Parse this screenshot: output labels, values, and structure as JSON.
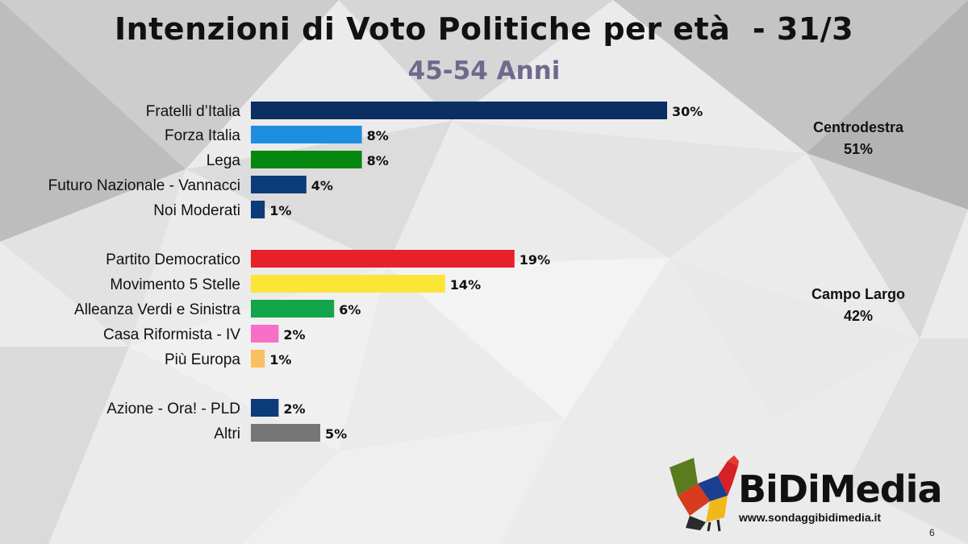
{
  "header": {
    "title": "Intenzioni di Voto Politiche per età  - 31/3",
    "subtitle": "45-54 Anni"
  },
  "chart_data": {
    "type": "bar",
    "orientation": "horizontal",
    "title": "Intenzioni di Voto Politiche per età  - 31/3",
    "subtitle": "45-54 Anni",
    "value_unit": "%",
    "categories": [
      "Fratelli d’Italia",
      "Forza Italia",
      "Lega",
      "Futuro Nazionale - Vannacci",
      "Noi Moderati",
      "Partito Democratico",
      "Movimento 5 Stelle",
      "Alleanza Verdi e Sinistra",
      "Casa Riformista - IV",
      "Più Europa",
      "Azione - Ora! - PLD",
      "Altri"
    ],
    "values": [
      30,
      8,
      8,
      4,
      1,
      19,
      14,
      6,
      2,
      1,
      2,
      5
    ],
    "value_labels": [
      "30%",
      "8%",
      "8%",
      "4%",
      "1%",
      "19%",
      "14%",
      "6%",
      "2%",
      "1%",
      "2%",
      "5%"
    ],
    "colors": [
      "#0b2f63",
      "#1e8fe0",
      "#06870f",
      "#0c3b7a",
      "#0c3b7a",
      "#e8202a",
      "#fbe536",
      "#13a54a",
      "#f76fc7",
      "#f9c05f",
      "#0c3b7a",
      "#767676"
    ],
    "coalitions": [
      {
        "name": "Centrodestra",
        "total": "51%",
        "members": [
          0,
          1,
          2,
          3,
          4
        ]
      },
      {
        "name": "Campo Largo",
        "total": "42%",
        "members": [
          5,
          6,
          7,
          8,
          9
        ]
      }
    ],
    "grid": false,
    "legend": "none"
  },
  "branding": {
    "name": "BiDiMedia",
    "website": "www.sondaggibidimedia.it",
    "page_number": "6"
  }
}
